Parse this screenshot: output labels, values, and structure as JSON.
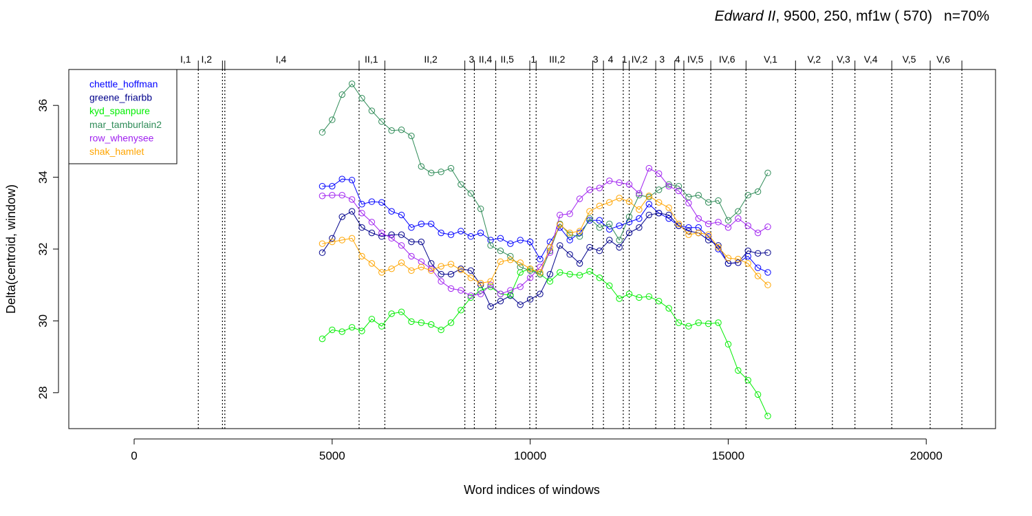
{
  "title": {
    "italic": "Edward II",
    "rest": ", 9500, 250, mf1w ( 570)",
    "extra": "n=70%"
  },
  "chart_data": {
    "type": "line",
    "xlabel": "Word indices of windows",
    "ylabel": "Delta(centroid, window)",
    "xlim": [
      -1650,
      21750
    ],
    "ylim": [
      27,
      37
    ],
    "x_ticks": [
      0,
      5000,
      10000,
      15000,
      20000
    ],
    "x_tick_labels": [
      "0",
      "5000",
      "10000",
      "15000",
      "20000"
    ],
    "y_ticks": [
      28,
      30,
      32,
      34,
      36
    ],
    "y_tick_labels": [
      "28",
      "30",
      "32",
      "34",
      "36"
    ],
    "grid": false,
    "legend_position": "top-left",
    "scene_boundaries": [
      1620,
      2230,
      2290,
      5680,
      6330,
      8350,
      8590,
      9130,
      9990,
      10150,
      11580,
      11850,
      12350,
      12500,
      13170,
      13650,
      13880,
      14560,
      15450,
      16700,
      17630,
      18200,
      19130,
      20100,
      20900
    ],
    "scene_labels": [
      {
        "label": "I,1",
        "x": 1300
      },
      {
        "label": "I,2",
        "x": 1830
      },
      {
        "label": "I,4",
        "x": 3710
      },
      {
        "label": "II,1",
        "x": 5990
      },
      {
        "label": "II,2",
        "x": 7490
      },
      {
        "label": "3",
        "x": 8520
      },
      {
        "label": "II,4",
        "x": 8870
      },
      {
        "label": "II,5",
        "x": 9420
      },
      {
        "label": "1",
        "x": 10080
      },
      {
        "label": "III,2",
        "x": 10680
      },
      {
        "label": "3",
        "x": 11650
      },
      {
        "label": "4",
        "x": 12030
      },
      {
        "label": "1",
        "x": 12380
      },
      {
        "label": "IV,2",
        "x": 12760
      },
      {
        "label": "3",
        "x": 13330
      },
      {
        "label": "4",
        "x": 13720
      },
      {
        "label": "IV,5",
        "x": 14170
      },
      {
        "label": "IV,6",
        "x": 14970
      },
      {
        "label": "V,1",
        "x": 16070
      },
      {
        "label": "V,2",
        "x": 17170
      },
      {
        "label": "V,3",
        "x": 17910
      },
      {
        "label": "V,4",
        "x": 18600
      },
      {
        "label": "V,5",
        "x": 19570
      },
      {
        "label": "V,6",
        "x": 20430
      }
    ],
    "x": [
      4750,
      5000,
      5250,
      5500,
      5750,
      6000,
      6250,
      6500,
      6750,
      7000,
      7250,
      7500,
      7750,
      8000,
      8250,
      8500,
      8750,
      9000,
      9250,
      9500,
      9750,
      10000,
      10250,
      10500,
      10750,
      11000,
      11250,
      11500,
      11750,
      12000,
      12250,
      12500,
      12750,
      13000,
      13250,
      13500,
      13750,
      14000,
      14250,
      14500,
      14750,
      15000,
      15250,
      15500,
      15750,
      16000
    ],
    "series": [
      {
        "name": "chettle_hoffman",
        "color": "#0000ff",
        "values": [
          33.75,
          33.75,
          33.95,
          33.92,
          33.25,
          33.32,
          33.3,
          33.05,
          32.95,
          32.6,
          32.7,
          32.7,
          32.45,
          32.4,
          32.5,
          32.35,
          32.45,
          32.25,
          32.3,
          32.15,
          32.25,
          32.2,
          31.72,
          32.2,
          32.6,
          32.25,
          32.45,
          32.8,
          32.8,
          32.55,
          32.65,
          32.75,
          32.85,
          33.25,
          33.0,
          32.85,
          32.65,
          32.6,
          32.6,
          32.35,
          32.0,
          31.6,
          31.62,
          31.8,
          31.48,
          31.35
        ]
      },
      {
        "name": "greene_friarbb",
        "color": "#00008b",
        "values": [
          31.9,
          32.3,
          32.9,
          33.05,
          32.6,
          32.45,
          32.35,
          32.4,
          32.4,
          32.2,
          32.2,
          31.6,
          31.3,
          31.3,
          31.45,
          31.4,
          31.0,
          30.4,
          30.55,
          30.7,
          30.45,
          30.6,
          30.75,
          31.3,
          32.1,
          31.85,
          31.6,
          32.05,
          31.95,
          32.25,
          32.05,
          32.45,
          32.6,
          32.95,
          33.0,
          32.95,
          32.65,
          32.5,
          32.45,
          32.25,
          32.1,
          31.6,
          31.62,
          31.95,
          31.88,
          31.9
        ]
      },
      {
        "name": "kyd_spanpure",
        "color": "#00ee00",
        "values": [
          29.5,
          29.75,
          29.7,
          29.82,
          29.72,
          30.05,
          29.85,
          30.2,
          30.25,
          29.98,
          29.95,
          29.9,
          29.75,
          29.95,
          30.3,
          30.65,
          30.85,
          30.95,
          30.75,
          30.72,
          31.35,
          31.45,
          31.3,
          31.1,
          31.35,
          31.3,
          31.27,
          31.38,
          31.2,
          30.98,
          30.62,
          30.75,
          30.65,
          30.68,
          30.55,
          30.35,
          29.95,
          29.85,
          29.95,
          29.92,
          29.95,
          29.35,
          28.62,
          28.35,
          27.95,
          27.35
        ]
      },
      {
        "name": "mar_tamburlain2",
        "color": "#2e8b57",
        "values": [
          35.25,
          35.6,
          36.3,
          36.6,
          36.2,
          35.85,
          35.55,
          35.3,
          35.32,
          35.15,
          34.3,
          34.12,
          34.15,
          34.25,
          33.8,
          33.55,
          33.12,
          32.1,
          31.95,
          31.8,
          31.5,
          31.4,
          31.3,
          31.95,
          32.7,
          32.4,
          32.35,
          32.85,
          32.6,
          32.7,
          32.25,
          32.9,
          33.5,
          33.45,
          33.65,
          33.8,
          33.75,
          33.45,
          33.5,
          33.3,
          33.35,
          32.8,
          33.05,
          33.5,
          33.6,
          34.12
        ]
      },
      {
        "name": "row_whenysee",
        "color": "#a020f0",
        "values": [
          33.48,
          33.5,
          33.5,
          33.38,
          33.0,
          32.75,
          32.45,
          32.3,
          32.1,
          31.8,
          31.65,
          31.45,
          31.1,
          30.9,
          30.85,
          30.7,
          30.75,
          31.0,
          30.75,
          30.85,
          30.95,
          31.2,
          31.5,
          31.9,
          32.95,
          32.98,
          33.4,
          33.65,
          33.7,
          33.9,
          33.85,
          33.8,
          33.55,
          34.25,
          34.1,
          33.75,
          33.62,
          33.28,
          32.85,
          32.7,
          32.75,
          32.6,
          32.85,
          32.65,
          32.45,
          32.62
        ]
      },
      {
        "name": "shak_hamlet",
        "color": "#ffa500",
        "values": [
          32.15,
          32.2,
          32.25,
          32.3,
          31.8,
          31.6,
          31.35,
          31.45,
          31.62,
          31.4,
          31.5,
          31.4,
          31.52,
          31.58,
          31.42,
          31.2,
          31.05,
          31.1,
          31.65,
          31.7,
          31.62,
          31.45,
          31.35,
          32.05,
          32.68,
          32.45,
          32.5,
          33.05,
          33.2,
          33.3,
          33.42,
          33.32,
          33.1,
          33.48,
          33.3,
          33.15,
          32.7,
          32.4,
          32.45,
          32.4,
          32.05,
          31.75,
          31.72,
          31.6,
          31.25,
          31.0
        ]
      }
    ]
  }
}
